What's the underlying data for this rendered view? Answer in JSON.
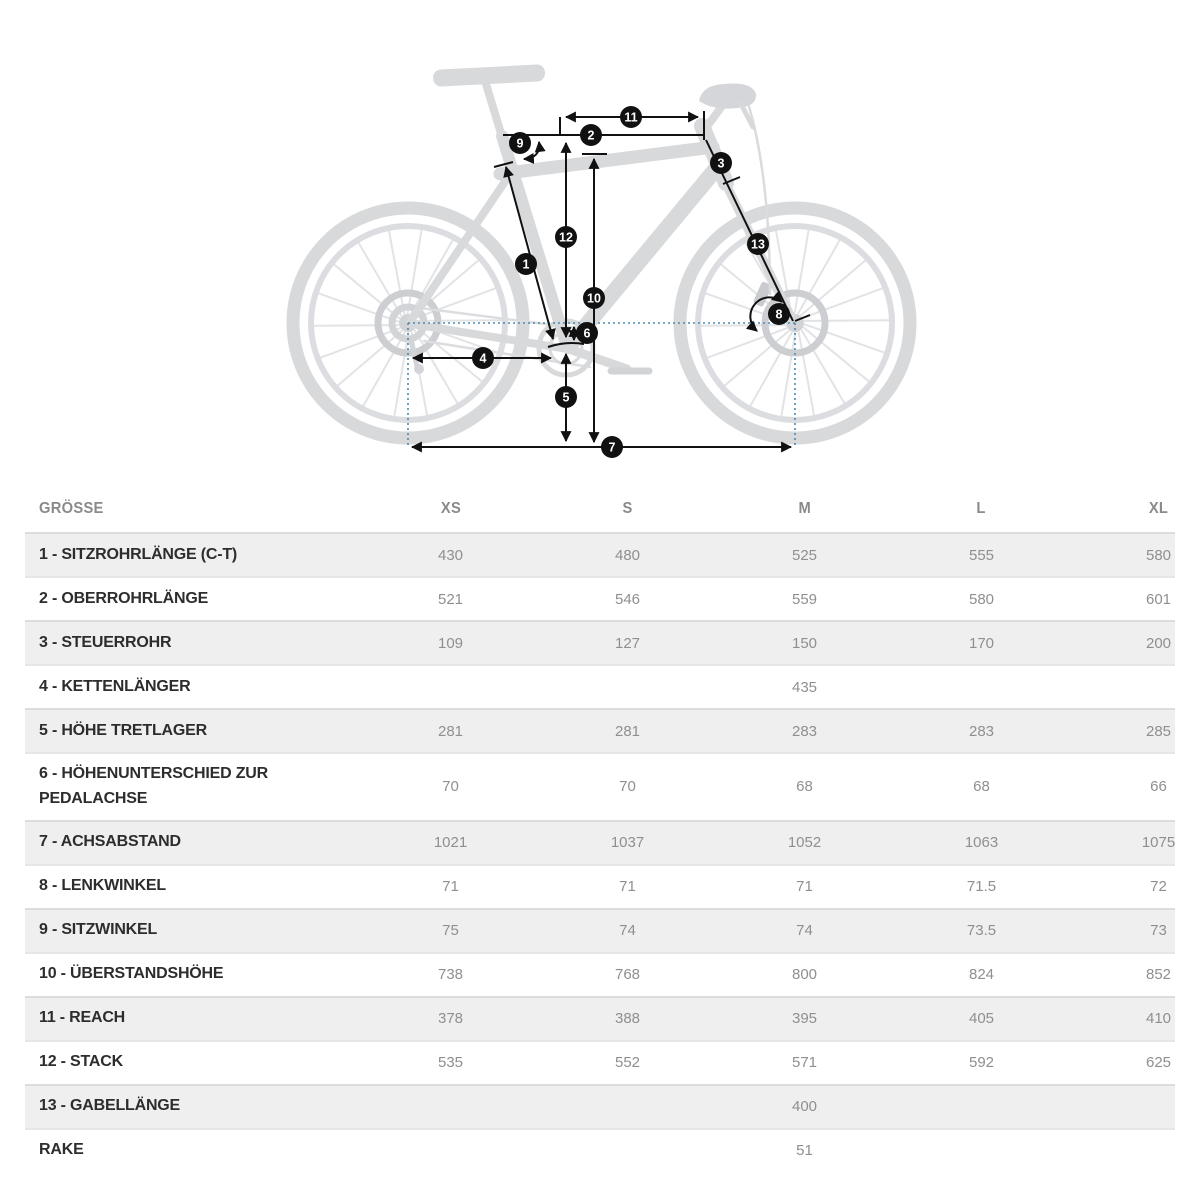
{
  "diagram": {
    "markers": [
      "1",
      "2",
      "3",
      "4",
      "5",
      "6",
      "7",
      "8",
      "9",
      "10",
      "11",
      "12",
      "13"
    ]
  },
  "table": {
    "header": {
      "size_label": "GRÖSSE",
      "columns": [
        "XS",
        "S",
        "M",
        "L",
        "XL"
      ]
    },
    "rows": [
      {
        "label": "1 - SITZROHRLÄNGE (C-T)",
        "values": [
          "430",
          "480",
          "525",
          "555",
          "580"
        ]
      },
      {
        "label": "2 - OBERROHRLÄNGE",
        "values": [
          "521",
          "546",
          "559",
          "580",
          "601"
        ]
      },
      {
        "label": "3 - STEUERROHR",
        "values": [
          "109",
          "127",
          "150",
          "170",
          "200"
        ]
      },
      {
        "label": "4 - KETTENLÄNGER",
        "values": [
          "",
          "",
          "435",
          "",
          ""
        ]
      },
      {
        "label": "5 - HÖHE TRETLAGER",
        "values": [
          "281",
          "281",
          "283",
          "283",
          "285"
        ]
      },
      {
        "label": "6 - HÖHENUNTERSCHIED ZUR PEDALACHSE",
        "values": [
          "70",
          "70",
          "68",
          "68",
          "66"
        ]
      },
      {
        "label": "7 - ACHSABSTAND",
        "values": [
          "1021",
          "1037",
          "1052",
          "1063",
          "1075"
        ]
      },
      {
        "label": "8 - LENKWINKEL",
        "values": [
          "71",
          "71",
          "71",
          "71.5",
          "72"
        ]
      },
      {
        "label": "9 - SITZWINKEL",
        "values": [
          "75",
          "74",
          "74",
          "73.5",
          "73"
        ]
      },
      {
        "label": "10 - ÜBERSTANDSHÖHE",
        "values": [
          "738",
          "768",
          "800",
          "824",
          "852"
        ]
      },
      {
        "label": "11 - REACH",
        "values": [
          "378",
          "388",
          "395",
          "405",
          "410"
        ]
      },
      {
        "label": "12 - STACK",
        "values": [
          "535",
          "552",
          "571",
          "592",
          "625"
        ]
      },
      {
        "label": "13 - GABELLÄNGE",
        "values": [
          "",
          "",
          "400",
          "",
          ""
        ]
      },
      {
        "label": "RAKE",
        "values": [
          "",
          "",
          "51",
          "",
          ""
        ]
      }
    ]
  },
  "colors": {
    "marker_black": "#111111",
    "dashed_reference_blue": "#4a8ab0",
    "bike_silhouette_gray": "#d8d9db",
    "row_stripe_gray": "#efefef",
    "value_text_gray": "#8f8f8f",
    "label_text_dark": "#2d2d2d"
  }
}
